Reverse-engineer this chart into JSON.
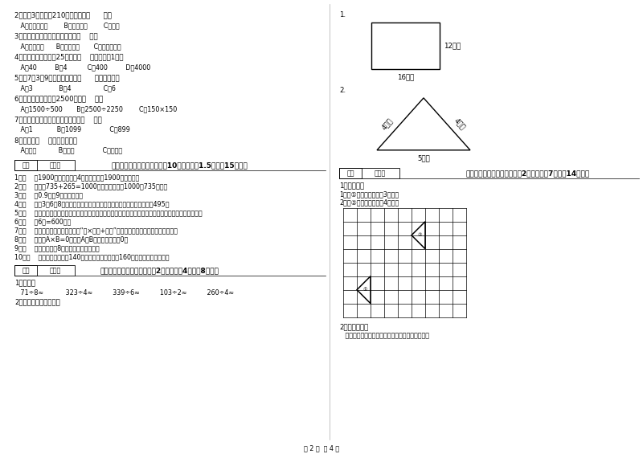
{
  "bg_color": "#ffffff",
  "text_color": "#000000",
  "page_width": 8.0,
  "page_height": 5.65,
  "left_col": {
    "q2_text": "2．爸爸3小时行了210千米，他是（      ）。",
    "q2_opts": "   A．乘公共汽车        B．骑自行车        C．步行",
    "q3_text": "3．下面现象中属于平移现象的是（    ）。",
    "q3_opts": "   A．开关抽屉      B．拧开瓶盖       C．转动的风车",
    "q4_text": "4．平均每个同学体重25千克，（    ）名同学重1吨。",
    "q4_opts": "   A．40         B．4          C．400         D．4000",
    "q5_text": "5．用7、3、9三个数字可组成（      ）个三位数。",
    "q5_opts": "   A．3             B．4                C．6",
    "q6_text": "6．下面的结果最接近2500的是（    ）。",
    "q6_opts": "   A．1500÷500       B．2500÷2250        C．150×150",
    "q7_text": "7．最小三位数和最大三位数的和是（    ）。",
    "q7_opts": "   A．1            B．1099              C．899",
    "q8_text": "8．四边形（    ）平行四边形。",
    "q8_opts": "   A．一定           B．可能              C．不可能",
    "sec3_header": "三、仔细推敲，正确判断（共10小题，每题1.5分，入15分）。",
    "judge_items": [
      "1．（    ）1900年的年份数是4的倍数，所以1900年是闰年。",
      "2．（    ）根据735+265=1000，可以直接写出1000－735的差。",
      "3．（    ）0.9里有9个十分之一。",
      "4．（    ）用3、6、8这三个数字组成的最大三位数与最小三位数，它们相差495。",
      "5．（    ）用同一条铁丝先围成一个最大的正方形，再围成一个最大的长方形，长方形和正它们的周长相等。",
      "6．（    ）6分=600秒。",
      "7．（    ）有余数除法的验算方法是“商×除数+余数”，看得到的结果是否与被除数相等。",
      "8．（    ）如果A×B=0，那么A和B中至少有一个是0。",
      "9．（    ）一个两位旅8，积一定也是两位数。",
      "10．（    ）一条河平均水深140厘米，一匹小马身高是160厘米，它肯定能通过。"
    ],
    "sec4_header": "四、看清题目，细心计算（割2小题，每题4分，兤8分）。",
    "q4_1": "1．估算。",
    "q4_1_calcs": "   71÷8≈           323÷4≈          339÷6≈          103÷2≈          260÷4≈",
    "q4_2": "2．求下面图形的周长。"
  },
  "right_col": {
    "sec1_q1_label": "1.",
    "sec1_q2_label": "2.",
    "rect_label_right": "12厘米",
    "rect_label_bottom": "16厘米",
    "tri_left_label": "4分米",
    "tri_right_label": "4分米",
    "tri_bottom_label": "5分米",
    "sec5_header": "五、认真思考，综合能力（割2小题，每题7分，入14分）。",
    "sec5_q1": "1．画一画。",
    "sec5_q1_1": "1．把①号图形向右平移3个格。",
    "sec5_q1_2": "2．把②号图形向左移动4个格。",
    "sec5_q2": "2．动手操作。",
    "sec5_q2_text": "   量出每条边的长度，以毫米为单位，并计算周长。"
  },
  "footer": "第 2 页  共 4 页"
}
